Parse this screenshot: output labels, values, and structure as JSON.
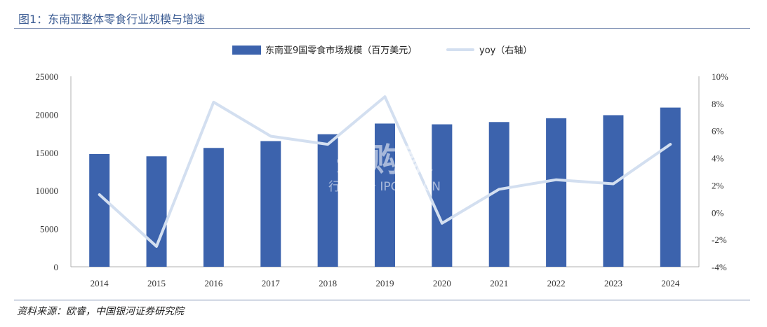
{
  "page": {
    "title": "图1：东南亚整体零食行业规模与增速",
    "source": "资料来源：欧睿，中国银河证券研究院",
    "watermark_main": "并购家",
    "watermark_sub": "行业报告 IPOIPO.CN"
  },
  "colors": {
    "bar": "#3c63ad",
    "line": "#d3dff0",
    "axis": "#b0b0b0",
    "title": "#3f5f95"
  },
  "chart_data": {
    "type": "bar",
    "categories": [
      "2014",
      "2015",
      "2016",
      "2017",
      "2018",
      "2019",
      "2020",
      "2021",
      "2022",
      "2023",
      "2024"
    ],
    "series": [
      {
        "name": "东南亚9国零食市场规模（百万美元）",
        "type": "bar",
        "axis": "left",
        "values": [
          14800,
          14500,
          15600,
          16500,
          17400,
          18800,
          18700,
          19000,
          19500,
          19900,
          20900
        ]
      },
      {
        "name": "yoy（右轴）",
        "type": "line",
        "axis": "right",
        "values": [
          1.3,
          -2.5,
          8.1,
          5.6,
          5.0,
          8.5,
          -0.8,
          1.7,
          2.4,
          2.1,
          5.0
        ]
      }
    ],
    "yleft": {
      "lim": [
        0,
        25000
      ],
      "ticks": [
        0,
        5000,
        10000,
        15000,
        20000,
        25000
      ],
      "tick_labels": [
        "0",
        "5000",
        "10000",
        "15000",
        "20000",
        "25000"
      ]
    },
    "yright": {
      "lim": [
        -4,
        10
      ],
      "ticks": [
        -4,
        -2,
        0,
        2,
        4,
        6,
        8,
        10
      ],
      "tick_labels": [
        "-4%",
        "-2%",
        "0%",
        "2%",
        "4%",
        "6%",
        "8%",
        "10%"
      ]
    },
    "legend": "top-center",
    "grid": false
  }
}
